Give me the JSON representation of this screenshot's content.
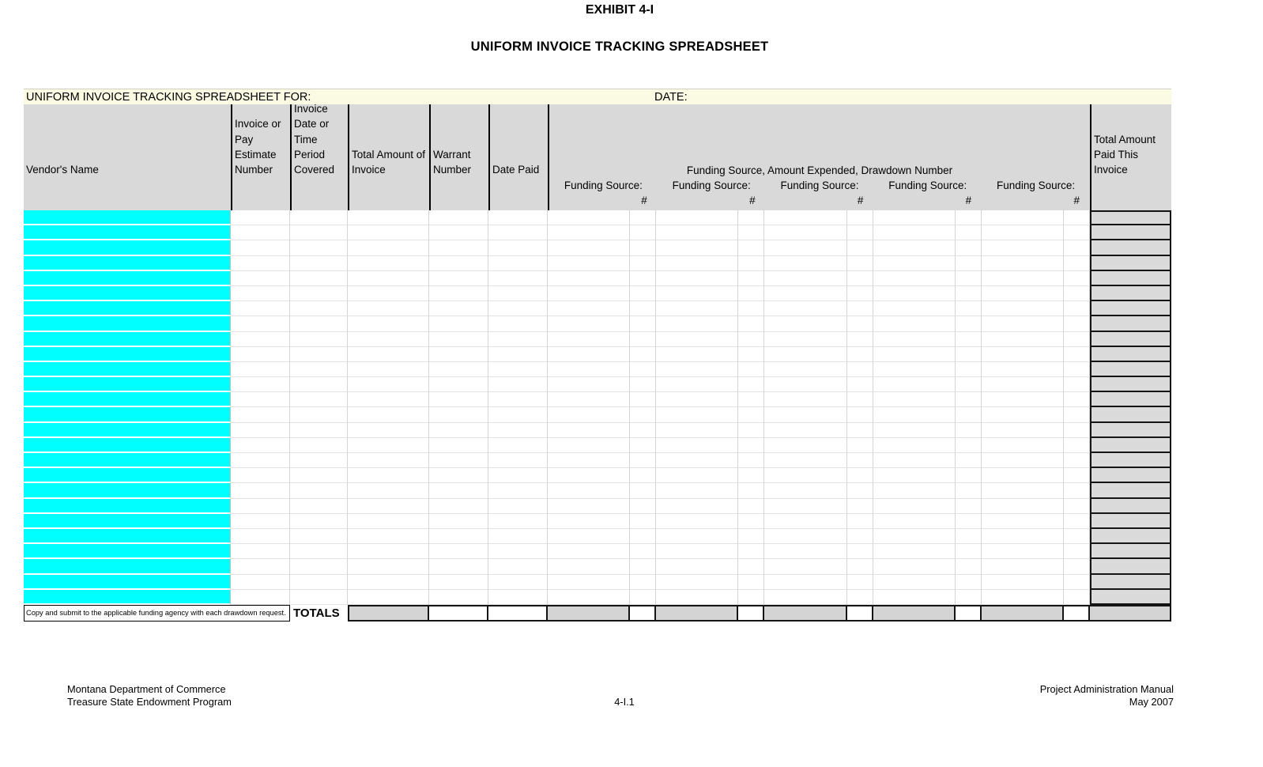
{
  "titles": {
    "exhibit": "EXHIBIT 4-I",
    "main": "UNIFORM INVOICE TRACKING SPREADSHEET"
  },
  "sheet": {
    "title_bar": {
      "for_label": "UNIFORM INVOICE TRACKING SPREADSHEET FOR:",
      "date_label": "DATE:"
    },
    "headers": {
      "vendor_name": "Vendor's Name",
      "invoice_or_pay_estimate_number": "Invoice or Pay Estimate Number",
      "invoice_date_or_time_period_covered": "Invoice Date or Time Period Covered",
      "total_amount_of_invoice": "Total Amount of Invoice",
      "warrant_number": "Warrant Number",
      "date_paid": "Date Paid",
      "funding_group_title": "Funding Source, Amount Expended, Drawdown Number",
      "funding_source_label": "Funding Source:",
      "drawdown_number_symbol": "#",
      "total_amount_paid_this_invoice": "Total Amount Paid This Invoice"
    },
    "funding_group_count": 5,
    "body_row_count": 26,
    "body_cells_empty": true,
    "totals_row": {
      "footnote": "Copy and submit to the applicable funding agency with each drawdown request.",
      "totals_label": "TOTALS"
    },
    "colors": {
      "vendor_highlight": "#00FFFF",
      "header_fill": "#D9D9D9",
      "title_bar_fill": "#FBFAE3",
      "totals_fill": "#D4D4D4",
      "paid_column_fill": "#DADADA"
    }
  },
  "footer": {
    "left_line1": "Montana Department of Commerce",
    "left_line2": "Treasure State Endowment Program",
    "center_page": "4-I.1",
    "right_line1": "Project Administration Manual",
    "right_line2": "May 2007"
  }
}
